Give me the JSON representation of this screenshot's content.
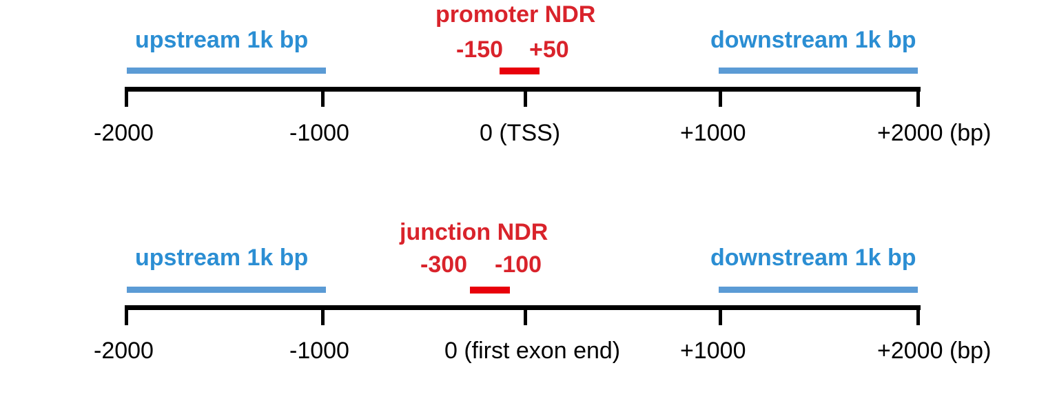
{
  "panels": [
    {
      "ndr_title": "promoter NDR",
      "upstream_label": "upstream 1k bp",
      "downstream_label": "downstream 1k bp",
      "ndr_start_label": "-150",
      "ndr_end_label": "+50",
      "ndr_start": -150,
      "ndr_end": 50,
      "ticks": [
        "-2000",
        "-1000",
        "0 (TSS)",
        "+1000",
        "+2000 (bp)"
      ]
    },
    {
      "ndr_title": "junction NDR",
      "upstream_label": "upstream 1k bp",
      "downstream_label": "downstream 1k bp",
      "ndr_start_label": "-300",
      "ndr_end_label": "-100",
      "ndr_start": -300,
      "ndr_end": -100,
      "ticks": [
        "-2000",
        "-1000",
        "0 (first exon end)",
        "+1000",
        "+2000 (bp)"
      ]
    }
  ],
  "colors": {
    "upstream_downstream": "#5b9bd5",
    "ndr": "#e8000b",
    "blue_text": "#2b8ed3",
    "red_text": "#d9232b",
    "axis": "#000000"
  }
}
